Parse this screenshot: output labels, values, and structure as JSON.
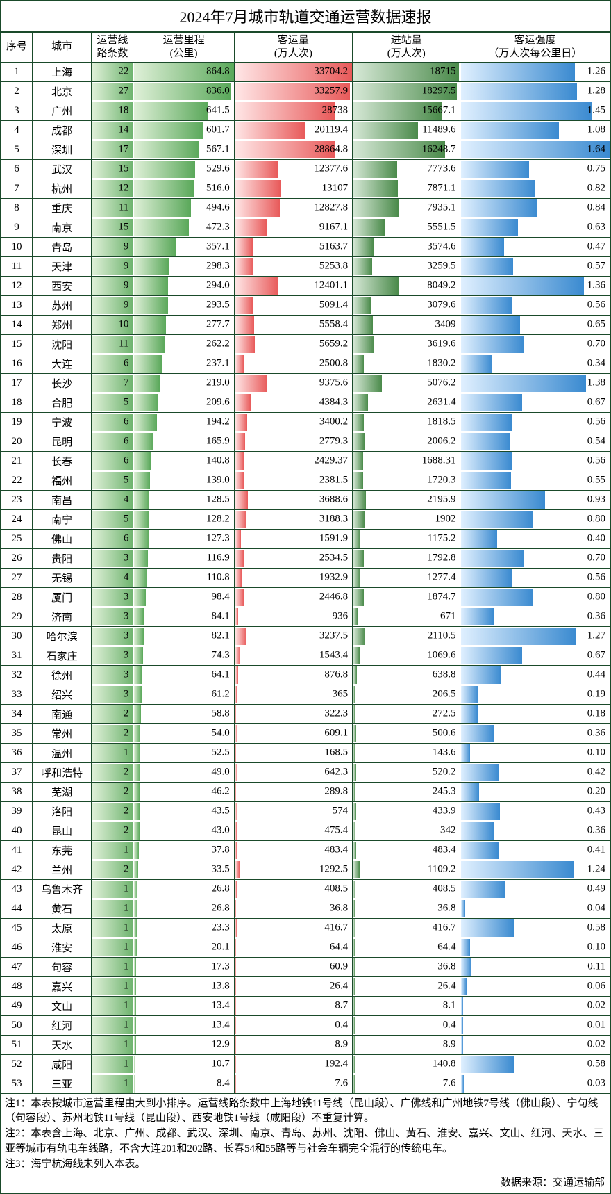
{
  "title": "2024年7月城市轨道交通运营数据速报",
  "headers": {
    "idx": "序号",
    "city": "城市",
    "lines": "运营线\n路条数",
    "mileage": "运营里程\n(公里)",
    "ridership": "客运量\n(万人次)",
    "entries": "进站量\n(万人次)",
    "intensity": "客运强度\n（万人次每公里日）"
  },
  "col_widths": {
    "idx": 45,
    "city": 85,
    "lines": 60,
    "mileage": 145,
    "ridership": 170,
    "entries": 155,
    "intensity": 215
  },
  "colors": {
    "border": "#1a4a2a",
    "lines_grad": [
      "#dff0d8",
      "#6db36d"
    ],
    "mileage_grad": [
      "#dff0d8",
      "#5aa85a"
    ],
    "ridership_grad": [
      "#ffe6e6",
      "#e85a5a"
    ],
    "entries_grad": [
      "#d6e8d6",
      "#4a8a4a"
    ],
    "intensity_grad": [
      "#e0f0ff",
      "#3a8ad0"
    ],
    "highlight_bg": "#ffffff"
  },
  "scale_max": {
    "mileage": 870,
    "ridership": 34000,
    "entries": 19000,
    "intensity": 1.65
  },
  "highlight_rows": [
    14,
    20
  ],
  "rows": [
    {
      "idx": 1,
      "city": "上海",
      "lines": 22,
      "mileage": 864.8,
      "ridership": 33704.2,
      "entries": 18715.0,
      "intensity": 1.26
    },
    {
      "idx": 2,
      "city": "北京",
      "lines": 27,
      "mileage": 836.0,
      "ridership": 33257.9,
      "entries": 18297.5,
      "intensity": 1.28
    },
    {
      "idx": 3,
      "city": "广州",
      "lines": 18,
      "mileage": 641.5,
      "ridership": 28738.0,
      "entries": 15667.1,
      "intensity": 1.45
    },
    {
      "idx": 4,
      "city": "成都",
      "lines": 14,
      "mileage": 601.7,
      "ridership": 20119.4,
      "entries": 11489.6,
      "intensity": 1.08
    },
    {
      "idx": 5,
      "city": "深圳",
      "lines": 17,
      "mileage": 567.1,
      "ridership": 28864.8,
      "entries": 16248.7,
      "intensity": 1.64
    },
    {
      "idx": 6,
      "city": "武汉",
      "lines": 15,
      "mileage": 529.6,
      "ridership": 12377.6,
      "entries": 7773.6,
      "intensity": 0.75
    },
    {
      "idx": 7,
      "city": "杭州",
      "lines": 12,
      "mileage": 516.0,
      "ridership": 13107.0,
      "entries": 7871.1,
      "intensity": 0.82
    },
    {
      "idx": 8,
      "city": "重庆",
      "lines": 11,
      "mileage": 494.6,
      "ridership": 12827.8,
      "entries": 7935.1,
      "intensity": 0.84
    },
    {
      "idx": 9,
      "city": "南京",
      "lines": 15,
      "mileage": 472.3,
      "ridership": 9167.1,
      "entries": 5551.5,
      "intensity": 0.63
    },
    {
      "idx": 10,
      "city": "青岛",
      "lines": 9,
      "mileage": 357.1,
      "ridership": 5163.7,
      "entries": 3574.6,
      "intensity": 0.47
    },
    {
      "idx": 11,
      "city": "天津",
      "lines": 9,
      "mileage": 298.3,
      "ridership": 5253.8,
      "entries": 3259.5,
      "intensity": 0.57
    },
    {
      "idx": 12,
      "city": "西安",
      "lines": 9,
      "mileage": 294.0,
      "ridership": 12401.1,
      "entries": 8049.2,
      "intensity": 1.36
    },
    {
      "idx": 13,
      "city": "苏州",
      "lines": 9,
      "mileage": 293.5,
      "ridership": 5091.4,
      "entries": 3079.6,
      "intensity": 0.56
    },
    {
      "idx": 14,
      "city": "郑州",
      "lines": 10,
      "mileage": 277.7,
      "ridership": 5558.4,
      "entries": 3409.0,
      "intensity": 0.65
    },
    {
      "idx": 15,
      "city": "沈阳",
      "lines": 11,
      "mileage": 262.2,
      "ridership": 5659.2,
      "entries": 3619.6,
      "intensity": 0.7
    },
    {
      "idx": 16,
      "city": "大连",
      "lines": 6,
      "mileage": 237.1,
      "ridership": 2500.8,
      "entries": 1830.2,
      "intensity": 0.34
    },
    {
      "idx": 17,
      "city": "长沙",
      "lines": 7,
      "mileage": 219.0,
      "ridership": 9375.6,
      "entries": 5076.2,
      "intensity": 1.38
    },
    {
      "idx": 18,
      "city": "合肥",
      "lines": 5,
      "mileage": 209.6,
      "ridership": 4384.3,
      "entries": 2631.4,
      "intensity": 0.67
    },
    {
      "idx": 19,
      "city": "宁波",
      "lines": 6,
      "mileage": 194.2,
      "ridership": 3400.2,
      "entries": 1818.5,
      "intensity": 0.56
    },
    {
      "idx": 20,
      "city": "昆明",
      "lines": 6,
      "mileage": 165.9,
      "ridership": 2779.3,
      "entries": 2006.2,
      "intensity": 0.54
    },
    {
      "idx": 21,
      "city": "长春",
      "lines": 6,
      "mileage": 140.8,
      "ridership": 2429.37,
      "entries": 1688.31,
      "intensity": 0.56
    },
    {
      "idx": 22,
      "city": "福州",
      "lines": 5,
      "mileage": 139.0,
      "ridership": 2381.5,
      "entries": 1720.3,
      "intensity": 0.55
    },
    {
      "idx": 23,
      "city": "南昌",
      "lines": 4,
      "mileage": 128.5,
      "ridership": 3688.6,
      "entries": 2195.9,
      "intensity": 0.93
    },
    {
      "idx": 24,
      "city": "南宁",
      "lines": 5,
      "mileage": 128.2,
      "ridership": 3188.3,
      "entries": 1902.0,
      "intensity": 0.8
    },
    {
      "idx": 25,
      "city": "佛山",
      "lines": 6,
      "mileage": 127.3,
      "ridership": 1591.9,
      "entries": 1175.2,
      "intensity": 0.4
    },
    {
      "idx": 26,
      "city": "贵阳",
      "lines": 3,
      "mileage": 116.9,
      "ridership": 2534.5,
      "entries": 1792.8,
      "intensity": 0.7
    },
    {
      "idx": 27,
      "city": "无锡",
      "lines": 4,
      "mileage": 110.8,
      "ridership": 1932.9,
      "entries": 1277.4,
      "intensity": 0.56
    },
    {
      "idx": 28,
      "city": "厦门",
      "lines": 3,
      "mileage": 98.4,
      "ridership": 2446.8,
      "entries": 1874.7,
      "intensity": 0.8
    },
    {
      "idx": 29,
      "city": "济南",
      "lines": 3,
      "mileage": 84.1,
      "ridership": 936.0,
      "entries": 671.0,
      "intensity": 0.36
    },
    {
      "idx": 30,
      "city": "哈尔滨",
      "lines": 3,
      "mileage": 82.1,
      "ridership": 3237.5,
      "entries": 2110.5,
      "intensity": 1.27
    },
    {
      "idx": 31,
      "city": "石家庄",
      "lines": 3,
      "mileage": 74.3,
      "ridership": 1543.4,
      "entries": 1069.6,
      "intensity": 0.67
    },
    {
      "idx": 32,
      "city": "徐州",
      "lines": 3,
      "mileage": 64.1,
      "ridership": 876.8,
      "entries": 638.8,
      "intensity": 0.44
    },
    {
      "idx": 33,
      "city": "绍兴",
      "lines": 3,
      "mileage": 61.2,
      "ridership": 365.0,
      "entries": 206.5,
      "intensity": 0.19
    },
    {
      "idx": 34,
      "city": "南通",
      "lines": 2,
      "mileage": 58.8,
      "ridership": 322.3,
      "entries": 272.5,
      "intensity": 0.18
    },
    {
      "idx": 35,
      "city": "常州",
      "lines": 2,
      "mileage": 54.0,
      "ridership": 609.1,
      "entries": 500.6,
      "intensity": 0.36
    },
    {
      "idx": 36,
      "city": "温州",
      "lines": 1,
      "mileage": 52.5,
      "ridership": 168.5,
      "entries": 143.6,
      "intensity": 0.1
    },
    {
      "idx": 37,
      "city": "呼和浩特",
      "lines": 2,
      "mileage": 49.0,
      "ridership": 642.3,
      "entries": 520.2,
      "intensity": 0.42
    },
    {
      "idx": 38,
      "city": "芜湖",
      "lines": 2,
      "mileage": 46.2,
      "ridership": 289.8,
      "entries": 245.3,
      "intensity": 0.2
    },
    {
      "idx": 39,
      "city": "洛阳",
      "lines": 2,
      "mileage": 43.5,
      "ridership": 574.0,
      "entries": 433.9,
      "intensity": 0.43
    },
    {
      "idx": 40,
      "city": "昆山",
      "lines": 2,
      "mileage": 43.0,
      "ridership": 475.4,
      "entries": 342.0,
      "intensity": 0.36
    },
    {
      "idx": 41,
      "city": "东莞",
      "lines": 1,
      "mileage": 37.8,
      "ridership": 483.4,
      "entries": 483.4,
      "intensity": 0.41
    },
    {
      "idx": 42,
      "city": "兰州",
      "lines": 2,
      "mileage": 33.5,
      "ridership": 1292.5,
      "entries": 1109.2,
      "intensity": 1.24
    },
    {
      "idx": 43,
      "city": "乌鲁木齐",
      "lines": 1,
      "mileage": 26.8,
      "ridership": 408.5,
      "entries": 408.5,
      "intensity": 0.49
    },
    {
      "idx": 44,
      "city": "黄石",
      "lines": 1,
      "mileage": 26.8,
      "ridership": 36.8,
      "entries": 36.8,
      "intensity": 0.04
    },
    {
      "idx": 45,
      "city": "太原",
      "lines": 1,
      "mileage": 23.3,
      "ridership": 416.7,
      "entries": 416.7,
      "intensity": 0.58
    },
    {
      "idx": 46,
      "city": "淮安",
      "lines": 1,
      "mileage": 20.1,
      "ridership": 64.4,
      "entries": 64.4,
      "intensity": 0.1
    },
    {
      "idx": 47,
      "city": "句容",
      "lines": 1,
      "mileage": 17.3,
      "ridership": 60.9,
      "entries": 36.8,
      "intensity": 0.11
    },
    {
      "idx": 48,
      "city": "嘉兴",
      "lines": 1,
      "mileage": 13.8,
      "ridership": 26.4,
      "entries": 26.4,
      "intensity": 0.06
    },
    {
      "idx": 49,
      "city": "文山",
      "lines": 1,
      "mileage": 13.4,
      "ridership": 8.7,
      "entries": 8.1,
      "intensity": 0.02
    },
    {
      "idx": 50,
      "city": "红河",
      "lines": 1,
      "mileage": 13.4,
      "ridership": 0.4,
      "entries": 0.4,
      "intensity": 0.01
    },
    {
      "idx": 51,
      "city": "天水",
      "lines": 1,
      "mileage": 12.9,
      "ridership": 8.9,
      "entries": 8.9,
      "intensity": 0.02
    },
    {
      "idx": 52,
      "city": "咸阳",
      "lines": 1,
      "mileage": 10.7,
      "ridership": 192.4,
      "entries": 140.8,
      "intensity": 0.58
    },
    {
      "idx": 53,
      "city": "三亚",
      "lines": 1,
      "mileage": 8.4,
      "ridership": 7.6,
      "entries": 7.6,
      "intensity": 0.03
    }
  ],
  "notes": [
    "注1：本表按城市运营里程由大到小排序。运营线路条数中上海地铁11号线（昆山段）、广佛线和广州地铁7号线（佛山段）、宁句线（句容段）、苏州地铁11号线（昆山段）、西安地铁1号线（咸阳段）不重复计算。",
    "注2：本表含上海、北京、广州、成都、武汉、深圳、南京、青岛、苏州、沈阳、佛山、黄石、淮安、嘉兴、文山、红河、天水、三亚等城市有轨电车线路，不含大连201和202路、长春54和55路等与社会车辆完全混行的传统电车。",
    "注3：海宁杭海线未列入本表。"
  ],
  "source": "数据来源：交通运输部"
}
